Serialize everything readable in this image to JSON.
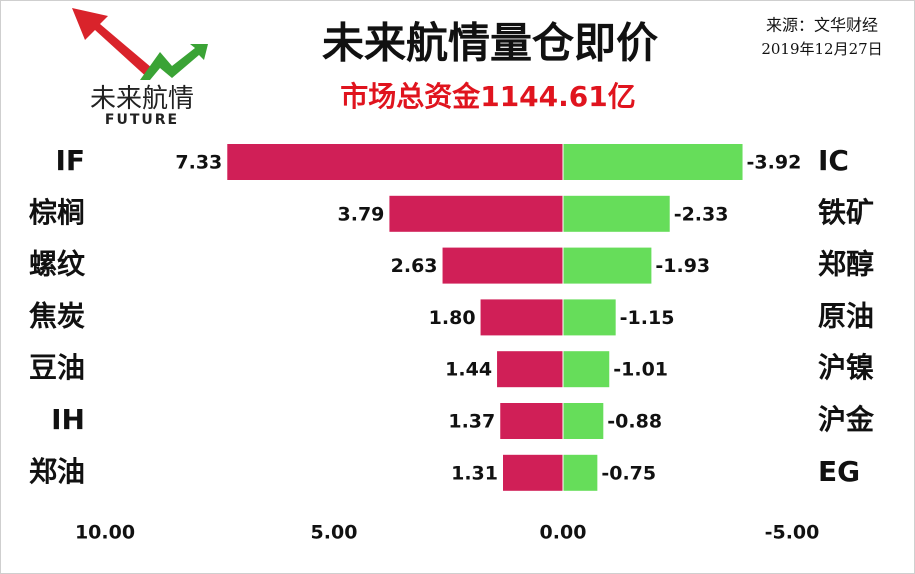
{
  "chart_data": {
    "type": "diverging_bar",
    "title": "未来航情量仓即价",
    "subtitle": "市场总资金1144.61亿",
    "source": "来源：文华财经",
    "date": "2019年12月27日",
    "logo_text": "未来航情",
    "logo_sub": "FUTURE",
    "xlim": [
      10,
      -5
    ],
    "xticks": [
      {
        "value": 10,
        "label": "10.00"
      },
      {
        "value": 5,
        "label": "5.00"
      },
      {
        "value": 0,
        "label": "0.00"
      },
      {
        "value": -5,
        "label": "-5.00"
      }
    ],
    "series": [
      {
        "categories": [
          "IF",
          "棕榈",
          "螺纹",
          "焦炭",
          "豆油",
          "IH",
          "郑油"
        ],
        "values": [
          7.33,
          3.79,
          2.63,
          1.8,
          1.44,
          1.37,
          1.31
        ],
        "value_labels": [
          "7.33",
          "3.79",
          "2.63",
          "1.80",
          "1.44",
          "1.37",
          "1.31"
        ],
        "color": "#d01f57"
      },
      {
        "categories": [
          "IC",
          "铁矿",
          "郑醇",
          "原油",
          "沪镍",
          "沪金",
          "EG"
        ],
        "values": [
          -3.92,
          -2.33,
          -1.93,
          -1.15,
          -1.01,
          -0.88,
          -0.75
        ],
        "value_labels": [
          "-3.92",
          "-2.33",
          "-1.93",
          "-1.15",
          "-1.01",
          "-0.88",
          "-0.75"
        ],
        "color": "#66dd5a"
      }
    ]
  }
}
